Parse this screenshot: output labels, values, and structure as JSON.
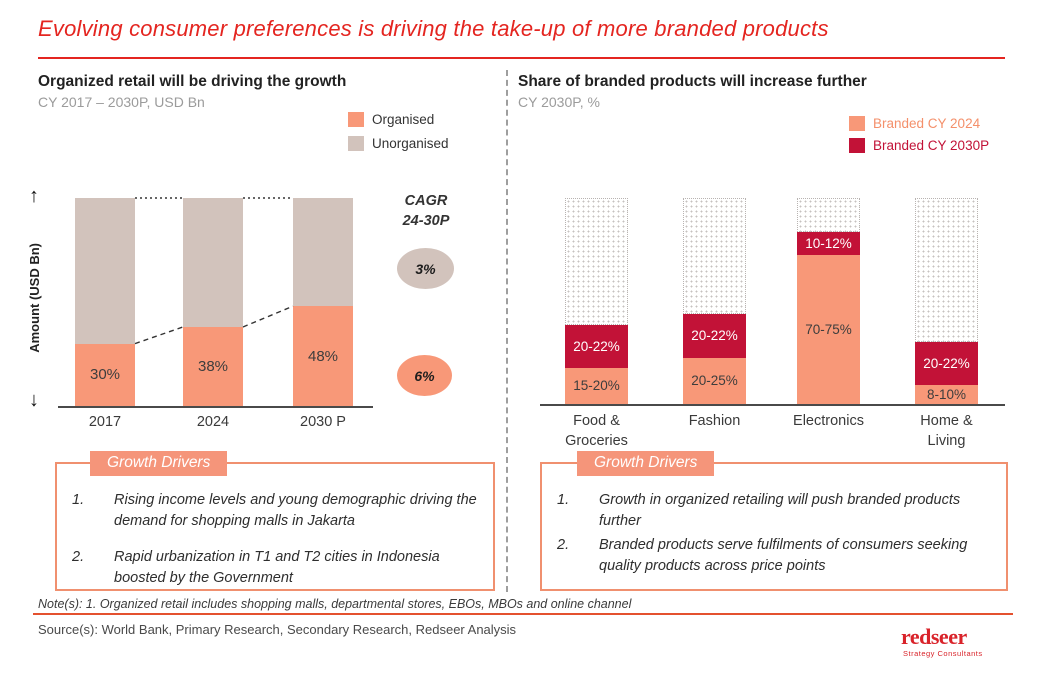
{
  "title": "Evolving consumer preferences is driving the take-up of more branded products",
  "left_panel": {
    "heading": "Organized retail will be driving the growth",
    "subtitle": "CY 2017 – 2030P, USD Bn",
    "legend": [
      {
        "label": "Organised",
        "color": "#F89878"
      },
      {
        "label": "Unorganised",
        "color": "#D2C3BC"
      }
    ],
    "y_axis_label": "Amount (USD Bn)",
    "arrow_up": "↑",
    "arrow_down": "↓",
    "cagr_title": "CAGR\n24-30P",
    "cagr_items": [
      {
        "value": "3%",
        "series": "Unorganised",
        "color": "#D2C3BC"
      },
      {
        "value": "6%",
        "series": "Organised",
        "color": "#F89878"
      }
    ],
    "growth_drivers": {
      "tab_label": "Growth Drivers",
      "numbers": [
        "1.",
        "2."
      ],
      "items": [
        "Rising income levels and young demographic driving the demand for shopping malls in Jakarta",
        "Rapid urbanization in T1 and T2 cities in Indonesia boosted by the Government"
      ]
    }
  },
  "right_panel": {
    "heading": "Share of branded products will increase further",
    "subtitle": "CY 2030P, %",
    "legend": [
      {
        "label": "Branded CY 2024",
        "color": "#F89878",
        "text_color": "#F4906B"
      },
      {
        "label": "Branded CY 2030P",
        "color": "#C21237",
        "text_color": "#C21237"
      }
    ],
    "growth_drivers": {
      "tab_label": "Growth Drivers",
      "numbers": [
        "1.",
        "2."
      ],
      "items": [
        "Growth in organized retailing will push branded products further",
        "Branded products serve fulfilments of consumers seeking quality products across price points"
      ]
    }
  },
  "chart_data": [
    {
      "type": "bar",
      "stacked": true,
      "title": "Organized retail will be driving the growth",
      "subtitle": "CY 2017 – 2030P, USD Bn",
      "ylabel": "Amount (USD Bn)",
      "categories": [
        "2017",
        "2024",
        "2030 P"
      ],
      "series": [
        {
          "name": "Organised",
          "color": "#F89878",
          "values_pct": [
            30,
            38,
            48
          ],
          "labels": [
            "30%",
            "38%",
            "48%"
          ]
        },
        {
          "name": "Unorganised",
          "color": "#D2C3BC",
          "values_pct": [
            70,
            62,
            52
          ],
          "labels": [
            "",
            "",
            ""
          ]
        }
      ],
      "annotations": {
        "cagr_title": "CAGR 24-30P",
        "cagr": [
          {
            "series": "Unorganised",
            "value": "3%"
          },
          {
            "series": "Organised",
            "value": "6%"
          }
        ]
      },
      "legend_position": "top-right",
      "grid": false
    },
    {
      "type": "bar",
      "stacked": true,
      "title": "Share of branded products will increase further",
      "subtitle": "CY 2030P, %",
      "ylim": [
        0,
        100
      ],
      "categories": [
        "Food &\nGroceries",
        "Fashion",
        "Electronics",
        "Home &\nLiving"
      ],
      "series": [
        {
          "name": "Branded CY 2024",
          "color": "#F89878",
          "labels": [
            "15-20%",
            "20-25%",
            "70-75%",
            "8-10%"
          ],
          "values_pct": [
            17.5,
            22.5,
            72.5,
            9
          ]
        },
        {
          "name": "Branded CY 2030P",
          "color": "#C21237",
          "labels": [
            "20-22%",
            "20-22%",
            "10-12%",
            "20-22%"
          ],
          "values_pct": [
            21,
            21,
            11,
            21
          ]
        },
        {
          "name": "Remainder (unbranded)",
          "color": "dotted-pattern",
          "labels": [
            "",
            "",
            "",
            ""
          ],
          "values_pct": [
            61.5,
            56.5,
            16.5,
            70
          ]
        }
      ],
      "legend_position": "top-right",
      "grid": false
    }
  ],
  "footer": {
    "note": "Note(s): 1. Organized retail includes shopping malls, departmental stores, EBOs, MBOs and online channel",
    "source": "Source(s): World Bank, Primary Research, Secondary Research, Redseer Analysis",
    "logo": {
      "wordmark": "redseer",
      "tagline": "Strategy Consultants"
    }
  }
}
